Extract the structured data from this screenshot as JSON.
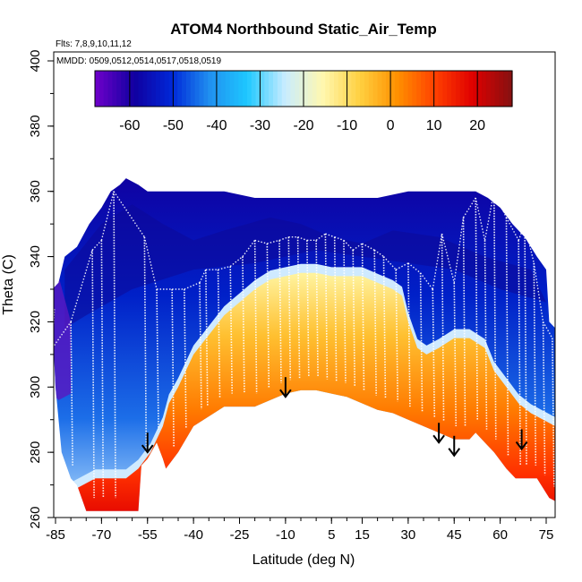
{
  "chart_data": {
    "type": "heatmap",
    "title": "ATOM4 Northbound Static_Air_Temp",
    "info_flights": "Flts: 7,8,9,10,11,12",
    "info_dates": "MMDD: 0509,0512,0514,0517,0518,0519",
    "xlabel": "Latitude (deg N)",
    "ylabel": "Theta (C)",
    "xlim": [
      -88,
      88
    ],
    "ylim": [
      260,
      405
    ],
    "xticks": [
      -85,
      -70,
      -55,
      -40,
      -25,
      -10,
      5,
      15,
      30,
      45,
      60,
      75
    ],
    "yticks": [
      260,
      280,
      300,
      320,
      340,
      360,
      380,
      400
    ],
    "colorbar": {
      "range": [
        -68,
        28
      ],
      "ticks": [
        -60,
        -50,
        -40,
        -30,
        -20,
        -10,
        0,
        10,
        20
      ],
      "colors": [
        "#6a00c8",
        "#1000a0",
        "#0028d8",
        "#2090f0",
        "#1ec8ff",
        "#c8ecff",
        "#fff8b0",
        "#ffd040",
        "#ff9000",
        "#ff4000",
        "#e00000",
        "#8a1010"
      ]
    },
    "upper_boundary": [
      [
        -86,
        330
      ],
      [
        -84,
        332
      ],
      [
        -82,
        340
      ],
      [
        -78,
        343
      ],
      [
        -74,
        350
      ],
      [
        -70,
        355
      ],
      [
        -67,
        360
      ],
      [
        -64,
        362
      ],
      [
        -62,
        364
      ],
      [
        -58,
        362
      ],
      [
        -55,
        360
      ],
      [
        -50,
        360
      ],
      [
        -40,
        360
      ],
      [
        -30,
        360
      ],
      [
        -20,
        358
      ],
      [
        -10,
        358
      ],
      [
        0,
        358
      ],
      [
        10,
        358
      ],
      [
        20,
        358
      ],
      [
        30,
        360
      ],
      [
        40,
        360
      ],
      [
        48,
        360
      ],
      [
        52,
        360
      ],
      [
        56,
        358
      ],
      [
        60,
        355
      ],
      [
        64,
        350
      ],
      [
        68,
        346
      ],
      [
        72,
        340
      ],
      [
        75,
        336
      ],
      [
        76,
        320
      ],
      [
        78,
        318
      ],
      [
        80,
        316
      ],
      [
        82,
        312
      ]
    ],
    "lower_boundary": [
      [
        -86,
        320
      ],
      [
        -85,
        300
      ],
      [
        -83,
        280
      ],
      [
        -80,
        272
      ],
      [
        -78,
        270
      ],
      [
        -75,
        262
      ],
      [
        -70,
        262
      ],
      [
        -62,
        262
      ],
      [
        -58,
        262
      ],
      [
        -57,
        276
      ],
      [
        -55,
        278
      ],
      [
        -52,
        283
      ],
      [
        -50,
        278
      ],
      [
        -49,
        275
      ],
      [
        -45,
        280
      ],
      [
        -40,
        288
      ],
      [
        -30,
        294
      ],
      [
        -20,
        294
      ],
      [
        -10,
        298
      ],
      [
        -5,
        299
      ],
      [
        0,
        299
      ],
      [
        5,
        298
      ],
      [
        10,
        297
      ],
      [
        15,
        295
      ],
      [
        20,
        293
      ],
      [
        25,
        292
      ],
      [
        30,
        290
      ],
      [
        35,
        288
      ],
      [
        40,
        286
      ],
      [
        45,
        284
      ],
      [
        50,
        284
      ],
      [
        52,
        286
      ],
      [
        55,
        283
      ],
      [
        58,
        280
      ],
      [
        62,
        275
      ],
      [
        65,
        272
      ],
      [
        68,
        272
      ],
      [
        72,
        272
      ],
      [
        76,
        266
      ],
      [
        78,
        265
      ],
      [
        80,
        268
      ],
      [
        82,
        270
      ]
    ],
    "warm_core_level": [
      [
        -88,
        260
      ],
      [
        -83,
        260
      ],
      [
        -80,
        268
      ],
      [
        -72,
        272
      ],
      [
        -62,
        272
      ],
      [
        -58,
        275
      ],
      [
        -54,
        280
      ],
      [
        -50,
        288
      ],
      [
        -48,
        295
      ],
      [
        -45,
        300
      ],
      [
        -40,
        310
      ],
      [
        -35,
        316
      ],
      [
        -30,
        322
      ],
      [
        -25,
        326
      ],
      [
        -20,
        330
      ],
      [
        -15,
        333
      ],
      [
        -10,
        334
      ],
      [
        -5,
        335
      ],
      [
        0,
        335
      ],
      [
        5,
        334
      ],
      [
        10,
        334
      ],
      [
        15,
        334
      ],
      [
        20,
        332
      ],
      [
        25,
        330
      ],
      [
        28,
        328
      ],
      [
        30,
        320
      ],
      [
        33,
        312
      ],
      [
        36,
        310
      ],
      [
        40,
        312
      ],
      [
        45,
        315
      ],
      [
        50,
        315
      ],
      [
        55,
        312
      ],
      [
        58,
        305
      ],
      [
        62,
        300
      ],
      [
        66,
        295
      ],
      [
        70,
        292
      ],
      [
        74,
        290
      ],
      [
        78,
        288
      ],
      [
        82,
        285
      ],
      [
        86,
        282
      ],
      [
        88,
        282
      ]
    ],
    "flight_track_tops": [
      [
        -86,
        312
      ],
      [
        -80,
        320
      ],
      [
        -73,
        342
      ],
      [
        -70,
        345
      ],
      [
        -66,
        360
      ],
      [
        -56,
        346
      ],
      [
        -52,
        330
      ],
      [
        -47,
        330
      ],
      [
        -43,
        330
      ],
      [
        -38,
        332
      ],
      [
        -36,
        336
      ],
      [
        -32,
        336
      ],
      [
        -28,
        337
      ],
      [
        -24,
        340
      ],
      [
        -20,
        345
      ],
      [
        -16,
        344
      ],
      [
        -12,
        345
      ],
      [
        -9,
        346
      ],
      [
        -6,
        346
      ],
      [
        -3,
        345
      ],
      [
        0,
        345
      ],
      [
        3,
        347
      ],
      [
        6,
        346
      ],
      [
        9,
        345
      ],
      [
        12,
        342
      ],
      [
        15,
        344
      ],
      [
        19,
        342
      ],
      [
        22,
        340
      ],
      [
        26,
        336
      ],
      [
        30,
        338
      ],
      [
        34,
        335
      ],
      [
        38,
        330
      ],
      [
        41,
        347
      ],
      [
        45,
        332
      ],
      [
        48,
        352
      ],
      [
        52,
        358
      ],
      [
        55,
        345
      ],
      [
        58,
        360
      ],
      [
        62,
        352
      ],
      [
        66,
        345
      ],
      [
        68,
        350
      ],
      [
        71,
        338
      ],
      [
        74,
        320
      ],
      [
        77,
        315
      ]
    ],
    "arrows": [
      -55,
      -10,
      40,
      45,
      67
    ],
    "grid": false
  }
}
